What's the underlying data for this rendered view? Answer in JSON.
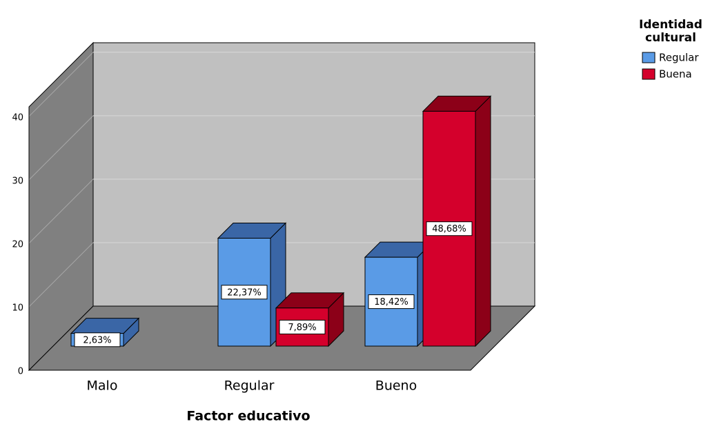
{
  "chart_data": {
    "type": "bar3d",
    "x_label": "Factor educativo",
    "legend_title": "Identidad cultural",
    "legend_position": "top-right",
    "categories": [
      "Malo",
      "Regular",
      "Bueno"
    ],
    "series": [
      {
        "name": "Regular",
        "color": "#5a9be6",
        "side_color": "#3a66a6",
        "values": [
          2,
          17,
          14
        ],
        "value_labels": [
          "2,63%",
          "22,37%",
          "18,42%"
        ]
      },
      {
        "name": "Buena",
        "color": "#d4002c",
        "side_color": "#8c0018",
        "values": [
          null,
          6,
          37
        ],
        "value_labels": [
          null,
          "7,89%",
          "48,68%"
        ]
      }
    ],
    "ylim": [
      0,
      41.5
    ],
    "yticks": [
      0,
      10,
      20,
      30,
      40
    ],
    "grid": true
  }
}
